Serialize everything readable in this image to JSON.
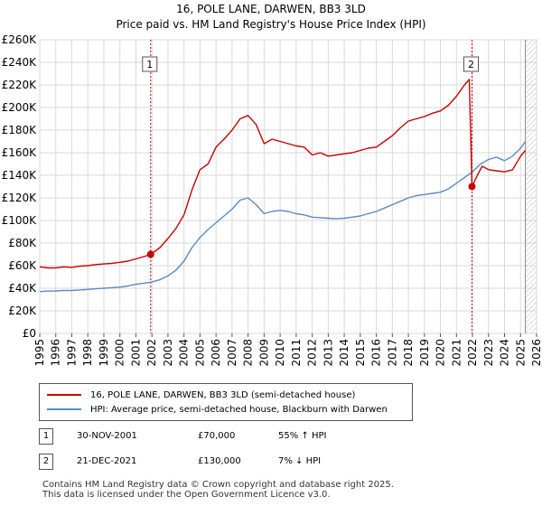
{
  "chart_data": {
    "type": "line",
    "title": "16, POLE LANE, DARWEN, BB3 3LD",
    "subtitle": "Price paid vs. HM Land Registry's House Price Index (HPI)",
    "xlim": [
      1995,
      2026
    ],
    "ylim": [
      0,
      260000
    ],
    "x_ticks": [
      "1995",
      "1996",
      "1997",
      "1998",
      "1999",
      "2000",
      "2001",
      "2002",
      "2003",
      "2004",
      "2005",
      "2006",
      "2007",
      "2008",
      "2009",
      "2010",
      "2011",
      "2012",
      "2013",
      "2014",
      "2015",
      "2016",
      "2017",
      "2018",
      "2019",
      "2020",
      "2021",
      "2022",
      "2023",
      "2024",
      "2025",
      "2026"
    ],
    "y_ticks": [
      "£0",
      "£20K",
      "£40K",
      "£60K",
      "£80K",
      "£100K",
      "£120K",
      "£140K",
      "£160K",
      "£180K",
      "£200K",
      "£220K",
      "£240K",
      "£260K"
    ],
    "series": [
      {
        "name": "16, POLE LANE, DARWEN, BB3 3LD (semi-detached house)",
        "color": "#cc0000",
        "x": [
          1995.0,
          1995.5,
          1996.0,
          1996.5,
          1997.0,
          1997.5,
          1998.0,
          1998.5,
          1999.0,
          1999.5,
          2000.0,
          2000.5,
          2001.0,
          2001.5,
          2001.92,
          2002.5,
          2003.0,
          2003.5,
          2004.0,
          2004.5,
          2005.0,
          2005.5,
          2006.0,
          2006.5,
          2007.0,
          2007.5,
          2008.0,
          2008.5,
          2009.0,
          2009.5,
          2010.0,
          2010.5,
          2011.0,
          2011.5,
          2012.0,
          2012.5,
          2013.0,
          2013.5,
          2014.0,
          2014.5,
          2015.0,
          2015.5,
          2016.0,
          2016.5,
          2017.0,
          2017.5,
          2018.0,
          2018.5,
          2019.0,
          2019.5,
          2020.0,
          2020.5,
          2021.0,
          2021.5,
          2021.8,
          2021.97,
          2022.3,
          2022.6,
          2023.0,
          2023.5,
          2024.0,
          2024.5,
          2025.0,
          2025.3
        ],
        "values": [
          59000,
          58000,
          58000,
          59000,
          58500,
          59500,
          60000,
          61000,
          61500,
          62000,
          63000,
          64000,
          66000,
          68000,
          70000,
          76000,
          84000,
          93000,
          105000,
          127000,
          145000,
          150000,
          165000,
          172000,
          180000,
          190000,
          193000,
          185000,
          168000,
          172000,
          170000,
          168000,
          166000,
          165000,
          158000,
          160000,
          157000,
          158000,
          159000,
          160000,
          162000,
          164000,
          165000,
          170000,
          175000,
          182000,
          188000,
          190000,
          192000,
          195000,
          197000,
          202000,
          210000,
          220000,
          225000,
          130000,
          140000,
          148000,
          145000,
          144000,
          143000,
          145000,
          157000,
          162000
        ]
      },
      {
        "name": "HPI: Average price, semi-detached house, Blackburn with Darwen",
        "color": "#5b8ac5",
        "x": [
          1995.0,
          1995.5,
          1996.0,
          1996.5,
          1997.0,
          1997.5,
          1998.0,
          1998.5,
          1999.0,
          1999.5,
          2000.0,
          2000.5,
          2001.0,
          2001.5,
          2002.0,
          2002.5,
          2003.0,
          2003.5,
          2004.0,
          2004.5,
          2005.0,
          2005.5,
          2006.0,
          2006.5,
          2007.0,
          2007.5,
          2008.0,
          2008.5,
          2009.0,
          2009.5,
          2010.0,
          2010.5,
          2011.0,
          2011.5,
          2012.0,
          2012.5,
          2013.0,
          2013.5,
          2014.0,
          2014.5,
          2015.0,
          2015.5,
          2016.0,
          2016.5,
          2017.0,
          2017.5,
          2018.0,
          2018.5,
          2019.0,
          2019.5,
          2020.0,
          2020.5,
          2021.0,
          2021.5,
          2022.0,
          2022.5,
          2023.0,
          2023.5,
          2024.0,
          2024.5,
          2025.0,
          2025.3
        ],
        "values": [
          37000,
          37500,
          37500,
          38000,
          38000,
          38500,
          39000,
          39500,
          40000,
          40500,
          41000,
          42000,
          43500,
          44500,
          45500,
          47500,
          51000,
          56000,
          64000,
          76000,
          85000,
          92000,
          98000,
          104000,
          110000,
          118000,
          120000,
          114000,
          106000,
          108000,
          109000,
          108000,
          106000,
          105000,
          103000,
          102500,
          102000,
          101500,
          102000,
          103000,
          104000,
          106000,
          108000,
          111000,
          114000,
          117000,
          120000,
          122000,
          123000,
          124000,
          125000,
          128000,
          133000,
          138000,
          143000,
          150000,
          154000,
          156000,
          153000,
          157000,
          164000,
          170000
        ]
      }
    ],
    "annotations": [
      {
        "label": "1",
        "x": 2001.92,
        "value": 70000
      },
      {
        "label": "2",
        "x": 2021.97,
        "value": 130000
      }
    ]
  },
  "legend": {
    "series1": "16, POLE LANE, DARWEN, BB3 3LD (semi-detached house)",
    "series2": "HPI: Average price, semi-detached house, Blackburn with Darwen"
  },
  "transactions": [
    {
      "num": "1",
      "date": "30-NOV-2001",
      "price": "£70,000",
      "hpi": "55% ↑ HPI"
    },
    {
      "num": "2",
      "date": "21-DEC-2021",
      "price": "£130,000",
      "hpi": "7% ↓ HPI"
    }
  ],
  "footer": {
    "line1": "Contains HM Land Registry data © Crown copyright and database right 2025.",
    "line2": "This data is licensed under the Open Government Licence v3.0."
  }
}
